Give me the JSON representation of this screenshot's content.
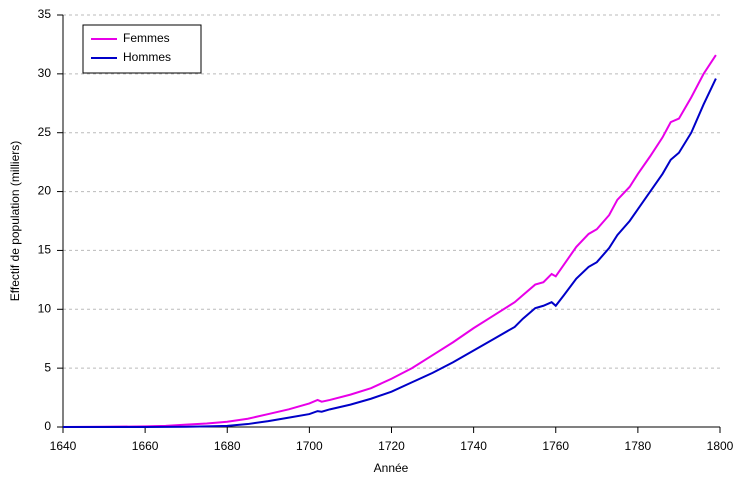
{
  "chart_data": {
    "type": "line",
    "xlabel": "Année",
    "ylabel": "Effectif de population (milliers)",
    "x": [
      1640,
      1650,
      1660,
      1665,
      1670,
      1675,
      1680,
      1685,
      1690,
      1695,
      1700,
      1702,
      1703,
      1705,
      1710,
      1715,
      1720,
      1725,
      1730,
      1735,
      1740,
      1745,
      1750,
      1752,
      1755,
      1757,
      1759,
      1760,
      1762,
      1765,
      1768,
      1770,
      1773,
      1775,
      1778,
      1780,
      1783,
      1786,
      1788,
      1790,
      1793,
      1796,
      1799
    ],
    "series": [
      {
        "name": "Femmes",
        "color": "#e800e8",
        "values": [
          0,
          0.02,
          0.05,
          0.1,
          0.2,
          0.3,
          0.45,
          0.7,
          1.1,
          1.5,
          2.0,
          2.3,
          2.15,
          2.3,
          2.75,
          3.3,
          4.1,
          5.0,
          6.1,
          7.2,
          8.4,
          9.5,
          10.6,
          11.2,
          12.1,
          12.3,
          13.0,
          12.8,
          13.8,
          15.3,
          16.4,
          16.8,
          18.0,
          19.3,
          20.4,
          21.5,
          23.0,
          24.6,
          25.9,
          26.2,
          28.0,
          30.0,
          31.6
        ]
      },
      {
        "name": "Hommes",
        "color": "#0000c8",
        "values": [
          0,
          0,
          0,
          0.01,
          0.02,
          0.05,
          0.1,
          0.25,
          0.5,
          0.8,
          1.1,
          1.35,
          1.3,
          1.5,
          1.9,
          2.4,
          3.0,
          3.8,
          4.6,
          5.5,
          6.5,
          7.5,
          8.5,
          9.2,
          10.1,
          10.3,
          10.6,
          10.3,
          11.2,
          12.6,
          13.6,
          14.0,
          15.2,
          16.3,
          17.5,
          18.5,
          20.0,
          21.5,
          22.7,
          23.3,
          25.0,
          27.4,
          29.6
        ]
      }
    ],
    "xlim": [
      1640,
      1800
    ],
    "xticks": [
      1640,
      1660,
      1680,
      1700,
      1720,
      1740,
      1760,
      1780,
      1800
    ],
    "ylim": [
      0,
      35
    ],
    "yticks": [
      0,
      5,
      10,
      15,
      20,
      25,
      30,
      35
    ],
    "grid": true,
    "legend": "upper left"
  }
}
